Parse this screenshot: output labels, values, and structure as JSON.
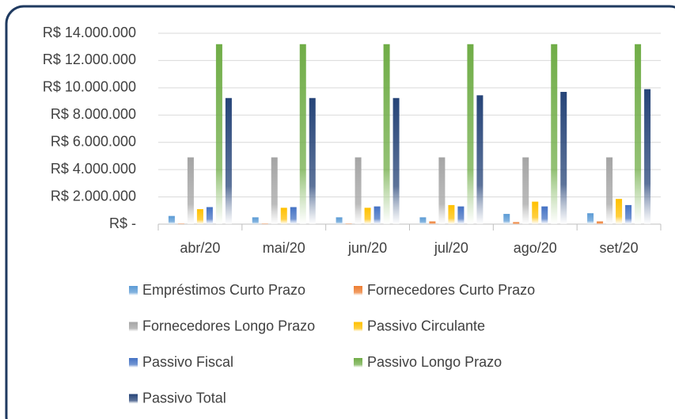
{
  "chart_data": {
    "type": "bar",
    "categories": [
      "abr/20",
      "mai/20",
      "jun/20",
      "jul/20",
      "ago/20",
      "set/20"
    ],
    "series": [
      {
        "name": "Empréstimos Curto Prazo",
        "color": "#5b9bd5",
        "values": [
          600000,
          500000,
          500000,
          500000,
          750000,
          800000
        ]
      },
      {
        "name": "Fornecedores Curto Prazo",
        "color": "#ed7d31",
        "values": [
          30000,
          30000,
          30000,
          200000,
          150000,
          200000
        ]
      },
      {
        "name": "Fornecedores Longo Prazo",
        "color": "#a5a5a5",
        "values": [
          4900000,
          4900000,
          4900000,
          4900000,
          4900000,
          4900000
        ]
      },
      {
        "name": "Passivo Circulante",
        "color": "#ffc000",
        "values": [
          1100000,
          1200000,
          1200000,
          1400000,
          1650000,
          1850000
        ]
      },
      {
        "name": "Passivo Fiscal",
        "color": "#4472c4",
        "values": [
          1250000,
          1250000,
          1300000,
          1300000,
          1300000,
          1400000
        ]
      },
      {
        "name": "Passivo Longo Prazo",
        "color": "#70ad47",
        "values": [
          13200000,
          13200000,
          13200000,
          13200000,
          13200000,
          13200000
        ]
      },
      {
        "name": "Passivo Total",
        "color": "#264478",
        "values": [
          9250000,
          9250000,
          9250000,
          9450000,
          9700000,
          9900000
        ]
      }
    ],
    "ylim": [
      0,
      14000000
    ],
    "yticks": [
      {
        "value": 0,
        "label": "R$ -"
      },
      {
        "value": 2000000,
        "label": "R$ 2.000.000"
      },
      {
        "value": 4000000,
        "label": "R$ 4.000.000"
      },
      {
        "value": 6000000,
        "label": "R$ 6.000.000"
      },
      {
        "value": 8000000,
        "label": "R$ 8.000.000"
      },
      {
        "value": 10000000,
        "label": "R$ 10.000.000"
      },
      {
        "value": 12000000,
        "label": "R$ 12.000.000"
      },
      {
        "value": 14000000,
        "label": "R$ 14.000.000"
      }
    ],
    "grid": true,
    "legend": "bottom"
  }
}
